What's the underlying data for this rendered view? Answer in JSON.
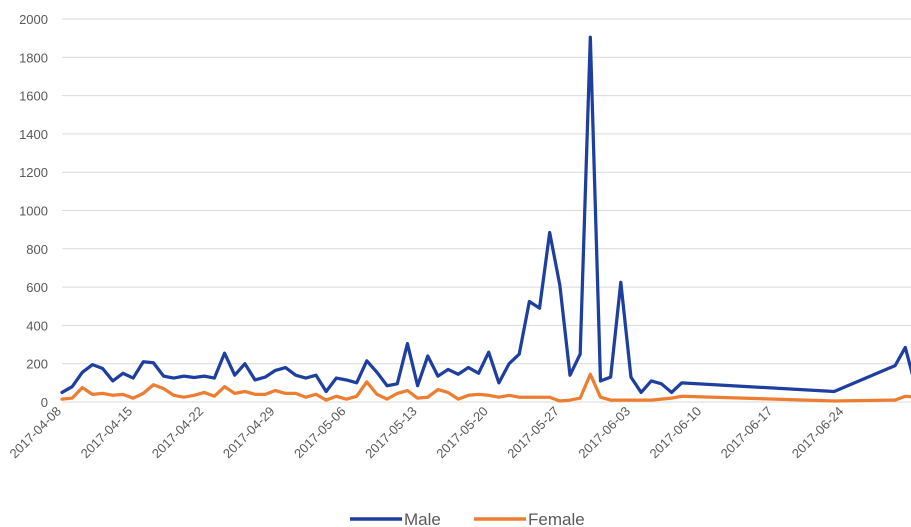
{
  "chart_data": {
    "type": "line",
    "title": "",
    "xlabel": "",
    "ylabel": "",
    "ylim": [
      0,
      2000
    ],
    "y_ticks": [
      0,
      200,
      400,
      600,
      800,
      1000,
      1200,
      1400,
      1600,
      1800,
      2000
    ],
    "x_tick_labels": [
      "2017-04-08",
      "2017-04-15",
      "2017-04-22",
      "2017-04-29",
      "2017-05-06",
      "2017-05-13",
      "2017-05-20",
      "2017-05-27",
      "2017-06-03",
      "2017-06-10",
      "2017-06-17",
      "2017-06-24"
    ],
    "grid": true,
    "legend_position": "bottom",
    "series": [
      {
        "name": "Male",
        "color": "#1f3fa0",
        "points": [
          [
            "2017-04-08",
            50
          ],
          [
            "2017-04-09",
            80
          ],
          [
            "2017-04-10",
            155
          ],
          [
            "2017-04-11",
            195
          ],
          [
            "2017-04-12",
            175
          ],
          [
            "2017-04-13",
            110
          ],
          [
            "2017-04-14",
            150
          ],
          [
            "2017-04-15",
            125
          ],
          [
            "2017-04-16",
            210
          ],
          [
            "2017-04-17",
            205
          ],
          [
            "2017-04-18",
            135
          ],
          [
            "2017-04-19",
            125
          ],
          [
            "2017-04-20",
            135
          ],
          [
            "2017-04-21",
            128
          ],
          [
            "2017-04-22",
            135
          ],
          [
            "2017-04-23",
            125
          ],
          [
            "2017-04-24",
            255
          ],
          [
            "2017-04-25",
            140
          ],
          [
            "2017-04-26",
            200
          ],
          [
            "2017-04-27",
            115
          ],
          [
            "2017-04-28",
            130
          ],
          [
            "2017-04-29",
            165
          ],
          [
            "2017-04-30",
            180
          ],
          [
            "2017-05-01",
            140
          ],
          [
            "2017-05-02",
            125
          ],
          [
            "2017-05-03",
            140
          ],
          [
            "2017-05-04",
            55
          ],
          [
            "2017-05-05",
            125
          ],
          [
            "2017-05-06",
            115
          ],
          [
            "2017-05-07",
            100
          ],
          [
            "2017-05-08",
            215
          ],
          [
            "2017-05-09",
            155
          ],
          [
            "2017-05-10",
            85
          ],
          [
            "2017-05-11",
            95
          ],
          [
            "2017-05-12",
            305
          ],
          [
            "2017-05-13",
            85
          ],
          [
            "2017-05-14",
            240
          ],
          [
            "2017-05-15",
            135
          ],
          [
            "2017-05-16",
            170
          ],
          [
            "2017-05-17",
            145
          ],
          [
            "2017-05-18",
            180
          ],
          [
            "2017-05-19",
            150
          ],
          [
            "2017-05-20",
            260
          ],
          [
            "2017-05-21",
            100
          ],
          [
            "2017-05-22",
            200
          ],
          [
            "2017-05-23",
            250
          ],
          [
            "2017-05-24",
            525
          ],
          [
            "2017-05-25",
            490
          ],
          [
            "2017-05-26",
            885
          ],
          [
            "2017-05-27",
            610
          ],
          [
            "2017-05-28",
            140
          ],
          [
            "2017-05-29",
            250
          ],
          [
            "2017-05-30",
            1905
          ],
          [
            "2017-05-31",
            110
          ],
          [
            "2017-06-01",
            130
          ],
          [
            "2017-06-02",
            625
          ],
          [
            "2017-06-03",
            130
          ],
          [
            "2017-06-04",
            50
          ],
          [
            "2017-06-05",
            110
          ],
          [
            "2017-06-06",
            95
          ],
          [
            "2017-06-07",
            50
          ],
          [
            "2017-06-08",
            100
          ],
          [
            "2017-06-23",
            55
          ],
          [
            "2017-06-29",
            190
          ],
          [
            "2017-06-30",
            285
          ],
          [
            "2017-07-01",
            85
          ]
        ]
      },
      {
        "name": "Female",
        "color": "#ed7d31",
        "points": [
          [
            "2017-04-08",
            15
          ],
          [
            "2017-04-09",
            20
          ],
          [
            "2017-04-10",
            75
          ],
          [
            "2017-04-11",
            40
          ],
          [
            "2017-04-12",
            45
          ],
          [
            "2017-04-13",
            35
          ],
          [
            "2017-04-14",
            40
          ],
          [
            "2017-04-15",
            20
          ],
          [
            "2017-04-16",
            45
          ],
          [
            "2017-04-17",
            90
          ],
          [
            "2017-04-18",
            70
          ],
          [
            "2017-04-19",
            35
          ],
          [
            "2017-04-20",
            25
          ],
          [
            "2017-04-21",
            35
          ],
          [
            "2017-04-22",
            50
          ],
          [
            "2017-04-23",
            30
          ],
          [
            "2017-04-24",
            80
          ],
          [
            "2017-04-25",
            45
          ],
          [
            "2017-04-26",
            55
          ],
          [
            "2017-04-27",
            40
          ],
          [
            "2017-04-28",
            40
          ],
          [
            "2017-04-29",
            60
          ],
          [
            "2017-04-30",
            45
          ],
          [
            "2017-05-01",
            45
          ],
          [
            "2017-05-02",
            25
          ],
          [
            "2017-05-03",
            40
          ],
          [
            "2017-05-04",
            10
          ],
          [
            "2017-05-05",
            30
          ],
          [
            "2017-05-06",
            15
          ],
          [
            "2017-05-07",
            30
          ],
          [
            "2017-05-08",
            105
          ],
          [
            "2017-05-09",
            40
          ],
          [
            "2017-05-10",
            15
          ],
          [
            "2017-05-11",
            45
          ],
          [
            "2017-05-12",
            60
          ],
          [
            "2017-05-13",
            20
          ],
          [
            "2017-05-14",
            25
          ],
          [
            "2017-05-15",
            65
          ],
          [
            "2017-05-16",
            50
          ],
          [
            "2017-05-17",
            15
          ],
          [
            "2017-05-18",
            35
          ],
          [
            "2017-05-19",
            40
          ],
          [
            "2017-05-20",
            35
          ],
          [
            "2017-05-21",
            25
          ],
          [
            "2017-05-22",
            35
          ],
          [
            "2017-05-23",
            25
          ],
          [
            "2017-05-24",
            25
          ],
          [
            "2017-05-25",
            25
          ],
          [
            "2017-05-26",
            25
          ],
          [
            "2017-05-27",
            5
          ],
          [
            "2017-05-28",
            10
          ],
          [
            "2017-05-29",
            20
          ],
          [
            "2017-05-30",
            145
          ],
          [
            "2017-05-31",
            25
          ],
          [
            "2017-06-01",
            10
          ],
          [
            "2017-06-02",
            10
          ],
          [
            "2017-06-03",
            10
          ],
          [
            "2017-06-04",
            10
          ],
          [
            "2017-06-05",
            10
          ],
          [
            "2017-06-06",
            15
          ],
          [
            "2017-06-07",
            20
          ],
          [
            "2017-06-08",
            30
          ],
          [
            "2017-06-23",
            5
          ],
          [
            "2017-06-29",
            10
          ],
          [
            "2017-06-30",
            30
          ],
          [
            "2017-07-01",
            25
          ]
        ]
      }
    ]
  }
}
